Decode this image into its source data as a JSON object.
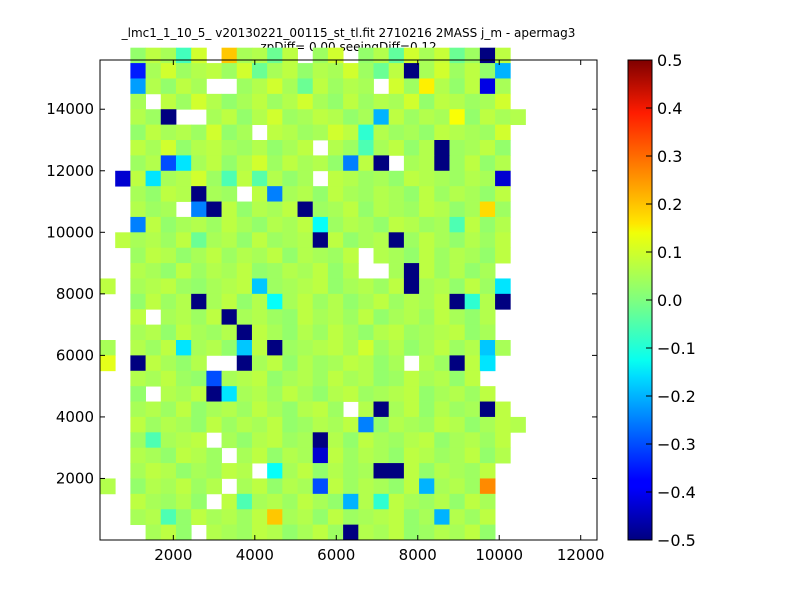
{
  "chart_data": {
    "type": "heatmap",
    "title": "_lmc1_1_10_5_ v20130221_00115_st_tl.fit 2710216 2MASS j_m - apermag3",
    "subtitle": "zpDiff= 0.00 seeingDiff=0.12",
    "xlabel": "",
    "ylabel": "",
    "xlim": [
      200,
      12400
    ],
    "ylim": [
      0,
      15600
    ],
    "x_ticks": [
      2000,
      4000,
      6000,
      8000,
      10000,
      12000
    ],
    "y_ticks": [
      2000,
      4000,
      6000,
      8000,
      10000,
      12000,
      14000
    ],
    "x_tick_labels": [
      "2000",
      "4000",
      "6000",
      "8000",
      "10000",
      "12000"
    ],
    "y_tick_labels": [
      "2000",
      "4000",
      "6000",
      "8000",
      "10000",
      "12000",
      "14000"
    ],
    "cell_size": [
      373,
      500
    ],
    "x_origin": 200,
    "y_origin": 0,
    "grid": false,
    "colormap": "jet",
    "colorbar": {
      "vmin": -0.5,
      "vmax": 0.5,
      "ticks": [
        -0.5,
        -0.4,
        -0.3,
        -0.2,
        -0.1,
        0.0,
        0.1,
        0.2,
        0.3,
        0.4,
        0.5
      ],
      "tick_labels": [
        "−0.5",
        "−0.4",
        "−0.3",
        "−0.2",
        "−0.1",
        "0.0",
        "0.1",
        "0.2",
        "0.3",
        "0.4",
        "0.5"
      ]
    },
    "row_labels_note": "rows listed top to bottom",
    "grid_values": [
      [
        null,
        null,
        0.02,
        0.06,
        0.04,
        -0.06,
        0.08,
        null,
        0.18,
        0.04,
        0.05,
        -0.02,
        0.06,
        null,
        0.03,
        0.08,
        null,
        0.02,
        0.05,
        -0.03,
        0.08,
        0.04,
        0.07,
        -0.02,
        0.03,
        -0.5,
        0.06,
        null
      ],
      [
        null,
        null,
        -0.35,
        0.04,
        0.08,
        0.03,
        0.05,
        0.06,
        0.03,
        0.08,
        -0.02,
        0.04,
        0.06,
        0.02,
        0.05,
        0.04,
        0.08,
        0.03,
        -0.02,
        0.06,
        -0.5,
        0.04,
        0.08,
        0.03,
        0.06,
        0.02,
        -0.2,
        null
      ],
      [
        null,
        null,
        -0.22,
        0.05,
        0.02,
        0.06,
        0.04,
        null,
        null,
        0.03,
        0.05,
        0.08,
        0.04,
        -0.02,
        0.06,
        0.03,
        0.05,
        0.04,
        null,
        0.08,
        0.03,
        0.14,
        0.05,
        0.02,
        0.06,
        -0.4,
        0.04,
        null
      ],
      [
        null,
        null,
        0.04,
        null,
        0.06,
        0.03,
        0.08,
        0.05,
        0.02,
        0.04,
        0.06,
        0.03,
        0.05,
        0.08,
        0.04,
        0.02,
        0.06,
        0.03,
        0.05,
        0.04,
        0.08,
        0.02,
        0.06,
        0.05,
        0.03,
        0.04,
        0.08,
        null
      ],
      [
        null,
        null,
        0.05,
        0.03,
        -0.5,
        null,
        null,
        0.04,
        0.06,
        0.02,
        0.05,
        0.08,
        0.03,
        0.04,
        0.06,
        0.05,
        0.02,
        0.04,
        -0.2,
        0.06,
        0.03,
        0.05,
        0.04,
        0.12,
        0.02,
        0.06,
        0.04,
        0.05
      ],
      [
        null,
        null,
        0.02,
        0.06,
        0.04,
        0.05,
        0.03,
        0.08,
        0.02,
        0.04,
        null,
        0.06,
        0.05,
        0.03,
        0.04,
        0.08,
        0.06,
        -0.08,
        0.05,
        0.03,
        0.04,
        0.02,
        0.06,
        0.05,
        0.04,
        0.03,
        0.08,
        null
      ],
      [
        null,
        null,
        0.06,
        0.04,
        0.08,
        0.02,
        0.05,
        0.06,
        0.04,
        0.03,
        0.05,
        0.02,
        0.04,
        0.06,
        null,
        0.05,
        0.03,
        -0.05,
        0.04,
        0.06,
        0.02,
        0.05,
        -0.5,
        0.03,
        0.04,
        0.06,
        0.02,
        null
      ],
      [
        null,
        null,
        0.03,
        0.05,
        -0.3,
        -0.15,
        0.04,
        0.06,
        0.02,
        0.05,
        0.08,
        0.03,
        0.06,
        0.04,
        0.05,
        0.02,
        -0.25,
        0.06,
        -0.5,
        null,
        0.04,
        0.05,
        -0.5,
        0.03,
        0.06,
        0.02,
        0.05,
        null
      ],
      [
        null,
        -0.42,
        0.06,
        -0.15,
        0.04,
        0.05,
        0.08,
        0.03,
        -0.05,
        0.06,
        -0.04,
        0.05,
        0.02,
        0.04,
        null,
        0.06,
        0.05,
        0.03,
        0.04,
        0.02,
        0.06,
        0.05,
        0.04,
        0.03,
        0.05,
        0.04,
        -0.42,
        null
      ],
      [
        null,
        null,
        0.04,
        0.02,
        0.06,
        0.05,
        -0.5,
        0.04,
        0.03,
        null,
        0.06,
        -0.25,
        0.04,
        0.05,
        0.02,
        0.06,
        0.04,
        0.03,
        0.05,
        0.04,
        0.02,
        0.06,
        0.03,
        0.05,
        0.04,
        0.02,
        0.06,
        null
      ],
      [
        null,
        null,
        0.05,
        0.03,
        0.04,
        null,
        -0.25,
        -0.5,
        0.06,
        0.02,
        0.05,
        0.04,
        0.06,
        -0.5,
        0.03,
        0.04,
        0.06,
        0.02,
        0.05,
        0.04,
        0.03,
        0.06,
        0.05,
        0.02,
        0.04,
        0.16,
        0.03,
        null
      ],
      [
        null,
        null,
        -0.25,
        0.06,
        0.02,
        0.04,
        0.05,
        0.03,
        0.06,
        0.04,
        0.02,
        0.05,
        0.04,
        0.06,
        -0.12,
        0.03,
        0.05,
        0.04,
        0.02,
        0.06,
        0.05,
        0.03,
        0.04,
        -0.05,
        0.06,
        0.02,
        0.05,
        null
      ],
      [
        null,
        0.06,
        0.04,
        0.05,
        0.03,
        0.06,
        -0.02,
        0.04,
        0.05,
        0.02,
        0.06,
        0.03,
        0.04,
        0.05,
        -0.5,
        0.06,
        0.02,
        0.04,
        0.05,
        -0.5,
        0.03,
        0.06,
        0.04,
        0.02,
        0.05,
        0.03,
        0.06,
        null
      ],
      [
        null,
        null,
        0.03,
        0.06,
        0.05,
        0.02,
        0.04,
        0.06,
        0.03,
        0.05,
        0.04,
        0.06,
        0.02,
        0.05,
        0.04,
        0.03,
        0.06,
        null,
        0.05,
        0.04,
        0.02,
        0.06,
        0.03,
        0.05,
        0.04,
        0.02,
        0.06,
        null
      ],
      [
        null,
        null,
        0.05,
        0.04,
        0.02,
        0.06,
        0.03,
        0.05,
        0.04,
        0.06,
        0.02,
        0.03,
        0.05,
        0.04,
        0.06,
        0.02,
        0.05,
        null,
        null,
        0.04,
        -0.5,
        0.06,
        0.03,
        0.05,
        0.02,
        0.04,
        null,
        null
      ],
      [
        0.06,
        null,
        0.04,
        0.05,
        0.06,
        0.03,
        0.02,
        0.04,
        0.05,
        0.06,
        -0.18,
        0.03,
        0.04,
        0.05,
        0.06,
        0.02,
        0.04,
        0.05,
        0.03,
        0.06,
        -0.5,
        0.04,
        0.05,
        0.02,
        0.06,
        0.03,
        -0.15,
        null
      ],
      [
        null,
        null,
        0.02,
        0.06,
        0.03,
        0.05,
        -0.5,
        0.04,
        0.06,
        0.02,
        0.05,
        -0.12,
        0.04,
        0.06,
        0.03,
        0.05,
        0.02,
        0.04,
        0.06,
        0.03,
        0.05,
        0.04,
        0.06,
        -0.5,
        -0.08,
        0.05,
        -0.5,
        null
      ],
      [
        null,
        null,
        0.06,
        null,
        0.04,
        0.05,
        0.03,
        0.06,
        -0.5,
        0.04,
        0.05,
        0.03,
        0.02,
        0.06,
        0.04,
        0.05,
        0.03,
        0.06,
        0.02,
        0.04,
        0.05,
        0.03,
        0.06,
        0.04,
        0.02,
        0.05,
        null,
        null
      ],
      [
        null,
        null,
        0.04,
        0.05,
        0.02,
        0.06,
        0.04,
        0.03,
        0.05,
        -0.5,
        0.06,
        0.04,
        0.02,
        0.05,
        0.03,
        0.06,
        0.04,
        0.02,
        0.05,
        0.06,
        0.03,
        0.04,
        0.05,
        0.06,
        0.02,
        0.04,
        null,
        null
      ],
      [
        0.04,
        null,
        0.05,
        0.03,
        0.06,
        -0.15,
        0.04,
        0.05,
        0.02,
        -0.18,
        0.06,
        -0.5,
        0.03,
        0.04,
        0.05,
        0.06,
        0.04,
        0.08,
        0.03,
        0.05,
        0.02,
        0.04,
        0.06,
        0.03,
        0.05,
        -0.18,
        0.04,
        null
      ],
      [
        0.1,
        null,
        -0.5,
        0.06,
        0.04,
        0.02,
        0.05,
        null,
        null,
        -0.5,
        0.04,
        0.06,
        0.02,
        0.05,
        0.03,
        0.04,
        0.06,
        0.05,
        0.02,
        0.04,
        null,
        0.05,
        0.03,
        -0.5,
        0.06,
        -0.15,
        null,
        null
      ],
      [
        null,
        null,
        0.05,
        0.04,
        0.06,
        0.03,
        0.02,
        -0.3,
        0.04,
        0.05,
        0.06,
        0.02,
        0.04,
        0.05,
        0.03,
        0.06,
        0.04,
        0.05,
        0.02,
        0.03,
        0.06,
        0.04,
        0.05,
        0.02,
        0.06,
        null,
        null,
        null
      ],
      [
        null,
        null,
        0.02,
        null,
        0.05,
        0.04,
        0.06,
        -0.5,
        -0.15,
        0.04,
        0.05,
        0.03,
        0.06,
        0.04,
        0.02,
        0.05,
        0.06,
        0.03,
        0.04,
        0.05,
        0.06,
        0.02,
        0.04,
        0.05,
        0.03,
        0.06,
        null,
        null
      ],
      [
        null,
        null,
        0.04,
        0.05,
        0.03,
        0.06,
        0.02,
        0.04,
        0.05,
        0.03,
        0.06,
        0.04,
        0.02,
        0.05,
        0.06,
        0.03,
        null,
        0.05,
        -0.5,
        0.04,
        0.06,
        0.02,
        0.05,
        0.03,
        0.04,
        -0.5,
        0.06,
        null
      ],
      [
        null,
        null,
        0.06,
        0.03,
        0.05,
        0.04,
        0.02,
        0.06,
        0.03,
        0.05,
        0.04,
        0.06,
        0.02,
        0.03,
        0.05,
        0.04,
        0.06,
        -0.25,
        0.02,
        0.05,
        0.04,
        0.03,
        0.06,
        0.05,
        0.02,
        0.04,
        0.06,
        0.05
      ],
      [
        null,
        null,
        0.03,
        -0.05,
        0.04,
        0.05,
        0.06,
        null,
        0.04,
        0.02,
        0.05,
        0.06,
        0.03,
        0.04,
        -0.5,
        0.05,
        0.02,
        0.06,
        0.04,
        0.03,
        0.05,
        0.06,
        0.02,
        0.04,
        0.05,
        0.03,
        0.06,
        null
      ],
      [
        null,
        null,
        0.05,
        0.04,
        0.02,
        0.06,
        0.05,
        0.03,
        null,
        0.04,
        0.06,
        0.02,
        0.05,
        0.04,
        -0.42,
        0.06,
        0.03,
        0.05,
        0.04,
        0.02,
        0.06,
        0.05,
        0.03,
        0.04,
        0.06,
        0.02,
        0.05,
        null
      ],
      [
        null,
        null,
        0.04,
        0.06,
        0.05,
        0.02,
        0.04,
        0.03,
        0.06,
        0.05,
        null,
        -0.12,
        0.04,
        0.06,
        0.02,
        0.05,
        0.03,
        0.04,
        -0.5,
        -0.5,
        0.06,
        0.02,
        0.05,
        0.04,
        0.03,
        0.06,
        null,
        null
      ],
      [
        0.05,
        null,
        0.02,
        0.05,
        0.04,
        0.06,
        0.03,
        0.05,
        null,
        0.04,
        0.06,
        0.02,
        0.05,
        0.04,
        -0.3,
        0.06,
        0.03,
        0.05,
        0.04,
        0.02,
        0.06,
        -0.2,
        0.04,
        0.05,
        0.03,
        0.24,
        null,
        null
      ],
      [
        null,
        null,
        0.06,
        0.04,
        0.03,
        0.05,
        0.02,
        null,
        0.06,
        -0.05,
        0.04,
        0.05,
        0.03,
        0.06,
        0.04,
        0.02,
        -0.2,
        0.05,
        -0.08,
        0.06,
        0.04,
        0.03,
        0.05,
        0.02,
        0.06,
        0.04,
        null,
        null
      ],
      [
        null,
        null,
        0.04,
        0.05,
        -0.05,
        0.02,
        0.06,
        0.04,
        0.05,
        0.03,
        0.06,
        0.18,
        0.04,
        0.05,
        0.02,
        0.06,
        0.03,
        0.04,
        0.05,
        0.06,
        0.02,
        0.04,
        -0.2,
        0.05,
        0.03,
        0.06,
        null,
        null
      ],
      [
        null,
        null,
        null,
        0.04,
        0.06,
        0.02,
        null,
        0.05,
        0.04,
        0.03,
        0.06,
        0.05,
        0.02,
        0.04,
        0.06,
        0.03,
        -0.5,
        0.05,
        0.04,
        0.06,
        0.02,
        0.03,
        0.05,
        0.04,
        0.06,
        0.02,
        null,
        null
      ]
    ]
  }
}
